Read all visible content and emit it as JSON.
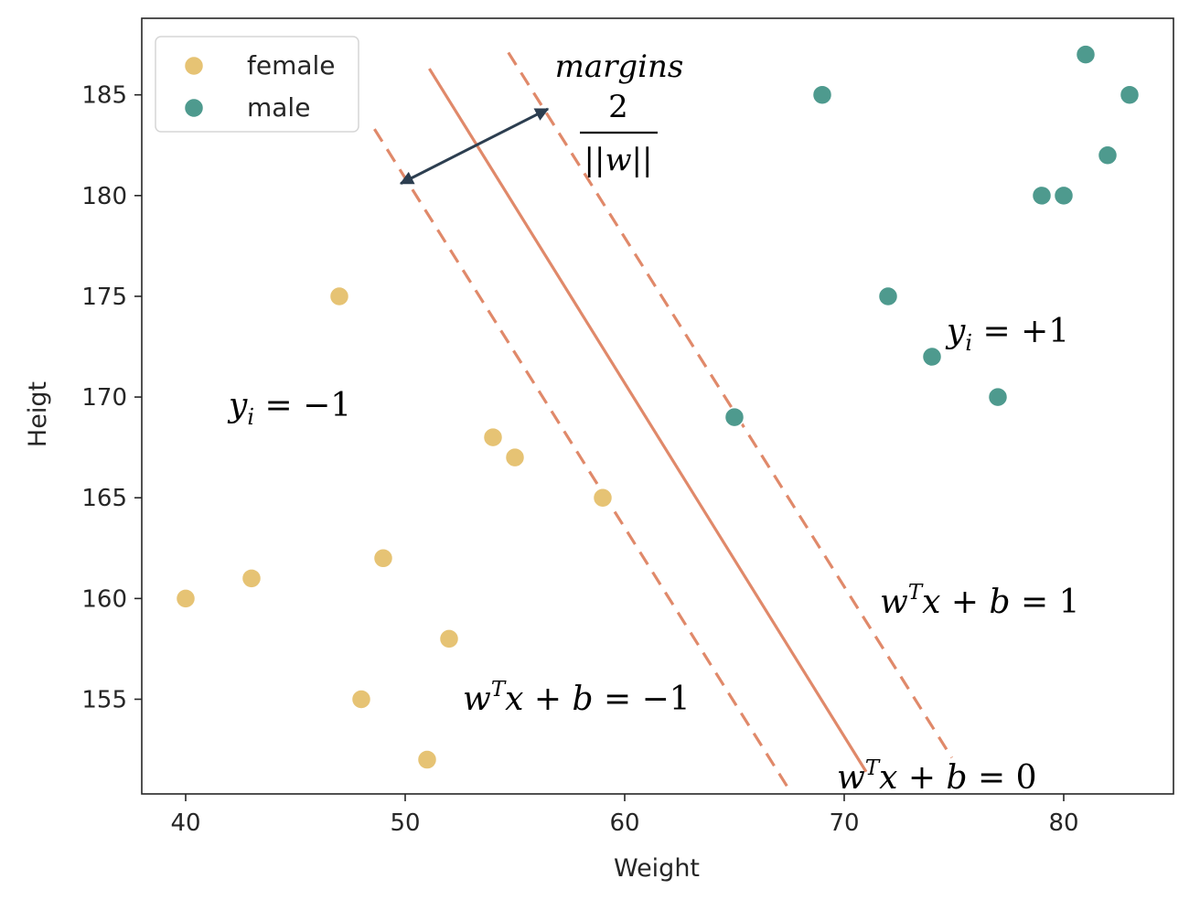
{
  "chart_data": {
    "type": "scatter",
    "xlabel": "Weight",
    "ylabel": "Heigt",
    "xlim": [
      38,
      85
    ],
    "ylim": [
      150.3,
      188.8
    ],
    "x_ticks": [
      40,
      50,
      60,
      70,
      80
    ],
    "y_ticks": [
      155,
      160,
      165,
      170,
      175,
      180,
      185
    ],
    "grid": false,
    "legend_position": "top-left",
    "series": [
      {
        "name": "female",
        "color": "#E6C374",
        "points": [
          {
            "x": 40,
            "y": 160
          },
          {
            "x": 43,
            "y": 161
          },
          {
            "x": 47,
            "y": 175
          },
          {
            "x": 48,
            "y": 155
          },
          {
            "x": 49,
            "y": 162
          },
          {
            "x": 51,
            "y": 152
          },
          {
            "x": 52,
            "y": 158
          },
          {
            "x": 54,
            "y": 168
          },
          {
            "x": 55,
            "y": 167
          },
          {
            "x": 59,
            "y": 165
          }
        ]
      },
      {
        "name": "male",
        "color": "#4E9A8E",
        "points": [
          {
            "x": 65,
            "y": 169
          },
          {
            "x": 69,
            "y": 185
          },
          {
            "x": 72,
            "y": 175
          },
          {
            "x": 74,
            "y": 172
          },
          {
            "x": 77,
            "y": 170
          },
          {
            "x": 79,
            "y": 180
          },
          {
            "x": 80,
            "y": 180
          },
          {
            "x": 81,
            "y": 187
          },
          {
            "x": 82,
            "y": 182
          },
          {
            "x": 83,
            "y": 185
          }
        ]
      }
    ],
    "lines": [
      {
        "id": "hyperplane",
        "style": "solid",
        "color": "#E0896A",
        "from": {
          "x": 51.1,
          "y": 186.3
        },
        "to": {
          "x": 71.0,
          "y": 151.4
        }
      },
      {
        "id": "margin-negative",
        "style": "dashed",
        "color": "#E0896A",
        "from": {
          "x": 48.6,
          "y": 183.3
        },
        "to": {
          "x": 67.5,
          "y": 150.5
        }
      },
      {
        "id": "margin-positive",
        "style": "dashed",
        "color": "#E0896A",
        "from": {
          "x": 54.7,
          "y": 187.1
        },
        "to": {
          "x": 74.9,
          "y": 152.1
        }
      }
    ],
    "margin_arrow": {
      "color": "#2C3E50",
      "from": {
        "x": 49.8,
        "y": 180.6
      },
      "to": {
        "x": 56.5,
        "y": 184.3
      }
    },
    "annotations": {
      "margins": "margins",
      "margin_numerator": "2",
      "margin_denominator": "||w||",
      "class_negative": "y_i = -1",
      "class_positive": "y_i = +1",
      "eq_positive": "w^T x + b = 1",
      "eq_negative": "w^T x + b = -1",
      "eq_zero": "w^T x + b = 0"
    }
  }
}
